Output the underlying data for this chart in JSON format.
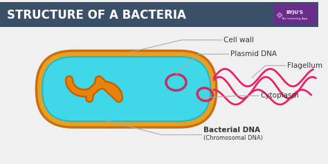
{
  "title": "STRUCTURE OF A BACTERIA",
  "title_color": "#ffffff",
  "title_bg": "#3a5068",
  "bg_color": "#f0f0f0",
  "cell_wall_color": "#e8a020",
  "cell_wall_edge": "#c87010",
  "cytoplasm_color": "#40d8e8",
  "cytoplasm_edge": "#20b8c8",
  "chrom_dna_color": "#e8820a",
  "chrom_dna_edge": "#c86000",
  "plasmid_edge": "#c03060",
  "flagellum_color": "#e8206a",
  "label_color": "#333333",
  "labels": {
    "cell_wall": "Cell wall",
    "plasmid": "Plasmid DNA",
    "flagellum": "Flagellum",
    "cytoplasm": "Cytoplasm",
    "bact_dna": "Bacterial DNA",
    "chrom_dna": "(Chromosomal DNA)"
  },
  "byju_bg": "#6b2d8b",
  "line_color": "#aaaaaa"
}
